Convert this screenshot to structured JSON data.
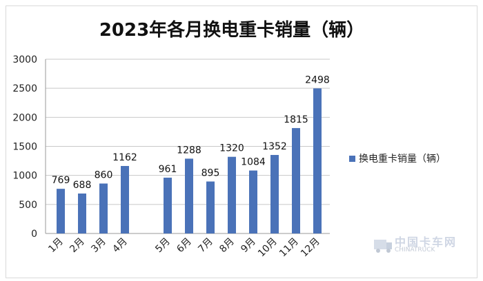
{
  "chart_data": {
    "type": "bar",
    "title": "2023年各月换电重卡销量（辆）",
    "xlabel": "",
    "ylabel": "",
    "categories": [
      "1月",
      "2月",
      "3月",
      "4月",
      "5月",
      "6月",
      "7月",
      "8月",
      "9月",
      "10月",
      "11月",
      "12月"
    ],
    "series": [
      {
        "name": "换电重卡销量（辆）",
        "values": [
          769,
          688,
          860,
          1162,
          961,
          1288,
          895,
          1320,
          1084,
          1352,
          1815,
          2498
        ]
      }
    ],
    "ylim": [
      0,
      3000
    ],
    "yticks": [
      0,
      500,
      1000,
      1500,
      2000,
      2500,
      3000
    ],
    "grid": true,
    "legend": "right",
    "bar_color": "#4a72b8"
  },
  "watermark": {
    "main": "中国卡车网",
    "sub": "CHINATRUCK"
  }
}
